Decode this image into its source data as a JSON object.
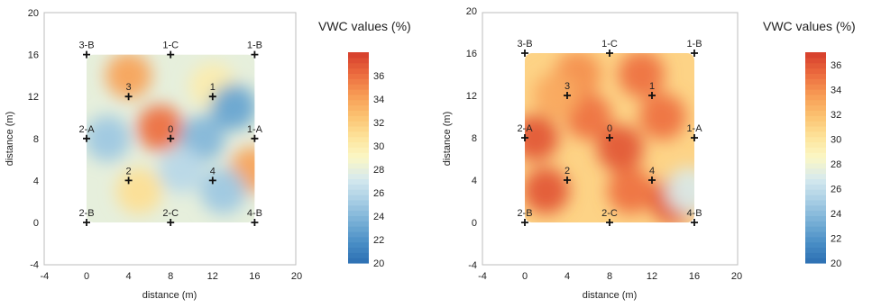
{
  "chart_data": [
    {
      "type": "heatmap",
      "xlabel": "distance (m)",
      "ylabel": "distance (m)",
      "xlim": [
        -4,
        20
      ],
      "ylim": [
        -4,
        20
      ],
      "xticks": [
        -4,
        0,
        4,
        8,
        12,
        16,
        20
      ],
      "yticks": [
        -4,
        0,
        4,
        8,
        12,
        16,
        20
      ],
      "field_extent": {
        "x": [
          0,
          16
        ],
        "y": [
          0,
          16
        ]
      },
      "colorbar": {
        "title": "VWC values (%)",
        "min": 20,
        "max": 38,
        "ticks": [
          20,
          22,
          24,
          26,
          28,
          30,
          32,
          34,
          36
        ]
      },
      "points": [
        {
          "label": "3-B",
          "x": 0,
          "y": 16
        },
        {
          "label": "1-C",
          "x": 8,
          "y": 16
        },
        {
          "label": "1-B",
          "x": 16,
          "y": 16
        },
        {
          "label": "3",
          "x": 4,
          "y": 12
        },
        {
          "label": "1",
          "x": 12,
          "y": 12
        },
        {
          "label": "2-A",
          "x": 0,
          "y": 8
        },
        {
          "label": "0",
          "x": 8,
          "y": 8
        },
        {
          "label": "1-A",
          "x": 16,
          "y": 8
        },
        {
          "label": "2",
          "x": 4,
          "y": 4
        },
        {
          "label": "4",
          "x": 12,
          "y": 4
        },
        {
          "label": "2-B",
          "x": 0,
          "y": 0
        },
        {
          "label": "2-C",
          "x": 8,
          "y": 0
        },
        {
          "label": "4-B",
          "x": 16,
          "y": 0
        }
      ],
      "hotspots": [
        {
          "x": 7,
          "y": 9,
          "value": 36
        },
        {
          "x": 4,
          "y": 14,
          "value": 34
        },
        {
          "x": 15.8,
          "y": 5,
          "value": 34
        },
        {
          "x": 5,
          "y": 3,
          "value": 31
        },
        {
          "x": 12,
          "y": 13,
          "value": 30
        },
        {
          "x": 2,
          "y": 8,
          "value": 25
        },
        {
          "x": 11,
          "y": 8,
          "value": 24
        },
        {
          "x": 13,
          "y": 3,
          "value": 25
        },
        {
          "x": 9,
          "y": 5,
          "value": 26
        },
        {
          "x": 14,
          "y": 11,
          "value": 23
        }
      ],
      "background_value": 28
    },
    {
      "type": "heatmap",
      "xlabel": "distance (m)",
      "ylabel": "distance (m)",
      "xlim": [
        -4,
        20
      ],
      "ylim": [
        -4,
        20
      ],
      "xticks": [
        -4,
        0,
        4,
        8,
        12,
        16,
        20
      ],
      "yticks": [
        -4,
        0,
        4,
        8,
        12,
        16,
        20
      ],
      "field_extent": {
        "x": [
          0,
          16
        ],
        "y": [
          0,
          16
        ]
      },
      "colorbar": {
        "title": "VWC values (%)",
        "min": 20,
        "max": 37,
        "ticks": [
          20,
          22,
          24,
          26,
          28,
          30,
          32,
          34,
          36
        ]
      },
      "points": [
        {
          "label": "3-B",
          "x": 0,
          "y": 16
        },
        {
          "label": "1-C",
          "x": 8,
          "y": 16
        },
        {
          "label": "1-B",
          "x": 16,
          "y": 16
        },
        {
          "label": "3",
          "x": 4,
          "y": 12
        },
        {
          "label": "1",
          "x": 12,
          "y": 12
        },
        {
          "label": "2-A",
          "x": 0,
          "y": 8
        },
        {
          "label": "0",
          "x": 8,
          "y": 8
        },
        {
          "label": "1-A",
          "x": 16,
          "y": 8
        },
        {
          "label": "2",
          "x": 4,
          "y": 4
        },
        {
          "label": "4",
          "x": 12,
          "y": 4
        },
        {
          "label": "2-B",
          "x": 0,
          "y": 0
        },
        {
          "label": "2-C",
          "x": 8,
          "y": 0
        },
        {
          "label": "4-B",
          "x": 16,
          "y": 0
        }
      ],
      "hotspots": [
        {
          "x": 1,
          "y": 8,
          "value": 36
        },
        {
          "x": 2,
          "y": 3,
          "value": 36
        },
        {
          "x": 6,
          "y": 10,
          "value": 35
        },
        {
          "x": 9,
          "y": 7,
          "value": 36
        },
        {
          "x": 13,
          "y": 10,
          "value": 35
        },
        {
          "x": 14,
          "y": 2,
          "value": 36
        },
        {
          "x": 11,
          "y": 14,
          "value": 35
        },
        {
          "x": 5,
          "y": 14,
          "value": 34
        },
        {
          "x": 10,
          "y": 3,
          "value": 35
        },
        {
          "x": 3,
          "y": 12,
          "value": 33
        },
        {
          "x": 15.5,
          "y": 3,
          "value": 27
        }
      ],
      "background_value": 31
    }
  ]
}
